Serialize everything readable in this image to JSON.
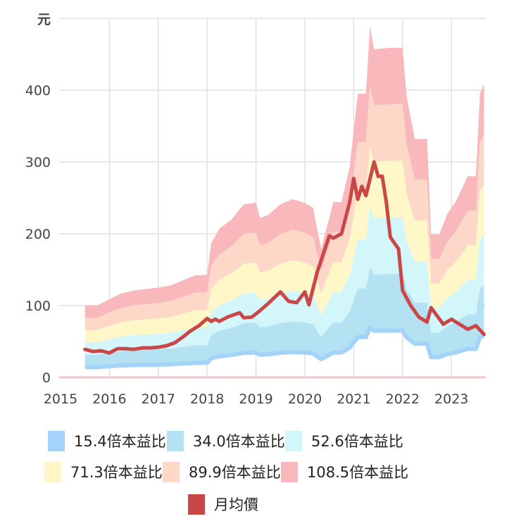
{
  "chart_data": {
    "type": "area",
    "y_unit_label": "元",
    "ylim": [
      0,
      500
    ],
    "xlim": [
      "2015-01",
      "2023-09"
    ],
    "y_ticks": [
      "0",
      "100",
      "200",
      "300",
      "400"
    ],
    "x_ticks": [
      "2015",
      "2016",
      "2017",
      "2018",
      "2019",
      "2020",
      "2021",
      "2022",
      "2023"
    ],
    "grid": true,
    "legend_position": "bottom",
    "bands": {
      "x": [
        "2015-07",
        "2015-10",
        "2016-01",
        "2016-04",
        "2016-07",
        "2016-10",
        "2017-01",
        "2017-04",
        "2017-07",
        "2017-10",
        "2018-01",
        "2018-02",
        "2018-04",
        "2018-07",
        "2018-10",
        "2019-01",
        "2019-02",
        "2019-04",
        "2019-07",
        "2019-10",
        "2020-01",
        "2020-03",
        "2020-05",
        "2020-08",
        "2020-10",
        "2020-12",
        "2021-02",
        "2021-04",
        "2021-05",
        "2021-06",
        "2021-10",
        "2022-01",
        "2022-02",
        "2022-04",
        "2022-07",
        "2022-08",
        "2022-10",
        "2022-12",
        "2023-02",
        "2023-05",
        "2023-07",
        "2023-08",
        "2023-09"
      ],
      "series": [
        {
          "name": "15.4倍本益比",
          "color": "#a3d3f8",
          "values": [
            14.2,
            14.2,
            15.5,
            16.6,
            17.2,
            17.5,
            17.7,
            18.2,
            19.2,
            20.1,
            20.3,
            26.5,
            29.4,
            31.2,
            34.2,
            34.5,
            31.5,
            32.1,
            34.2,
            35.2,
            34.5,
            33.5,
            25.4,
            34.6,
            34.6,
            41.6,
            56.1,
            56.1,
            69.4,
            64.9,
            65.1,
            65.1,
            55.5,
            47.1,
            47.1,
            28.2,
            28.2,
            32.4,
            34.6,
            39.7,
            39.7,
            56.1,
            57.9
          ]
        },
        {
          "name": "34.0倍本益比",
          "color": "#b5e2f3",
          "values": [
            31.3,
            31.3,
            34.2,
            36.7,
            37.9,
            38.5,
            39.2,
            40.1,
            42.3,
            44.5,
            44.8,
            58.6,
            64.9,
            68.9,
            75.5,
            76.2,
            69.6,
            70.8,
            75.5,
            77.7,
            76.2,
            74.0,
            56.1,
            76.5,
            76.5,
            91.8,
            123.8,
            123.8,
            153.3,
            143.2,
            143.9,
            143.9,
            122.5,
            104.0,
            104.0,
            62.4,
            62.4,
            71.5,
            76.5,
            87.8,
            87.8,
            123.8,
            127.9
          ]
        },
        {
          "name": "52.6倍本益比",
          "color": "#d3f6fa",
          "values": [
            48.5,
            48.5,
            52.8,
            56.7,
            58.7,
            59.6,
            60.6,
            62.1,
            65.4,
            68.8,
            69.3,
            90.7,
            100.4,
            106.7,
            116.8,
            117.8,
            107.6,
            109.6,
            116.8,
            120.2,
            117.8,
            114.4,
            86.8,
            118.3,
            118.3,
            142.0,
            191.5,
            191.5,
            237.1,
            221.6,
            222.5,
            222.5,
            189.6,
            161.0,
            161.0,
            96.5,
            96.5,
            110.5,
            118.3,
            135.7,
            135.7,
            191.5,
            197.8
          ]
        },
        {
          "name": "71.3倍本益比",
          "color": "#fff7c8",
          "values": [
            65.7,
            65.7,
            71.6,
            76.9,
            79.5,
            80.8,
            82.1,
            84.1,
            88.7,
            93.3,
            94.0,
            122.9,
            136.0,
            144.6,
            158.4,
            159.7,
            145.9,
            148.5,
            158.4,
            163.0,
            159.7,
            155.1,
            117.6,
            160.3,
            160.3,
            192.5,
            259.6,
            259.6,
            321.3,
            300.3,
            301.6,
            301.6,
            256.9,
            218.2,
            218.2,
            130.8,
            130.8,
            149.8,
            160.3,
            184.0,
            184.0,
            259.6,
            268.1
          ]
        },
        {
          "name": "89.9倍本益比",
          "color": "#fdd7c8",
          "values": [
            82.9,
            82.9,
            90.3,
            96.9,
            100.3,
            101.9,
            103.6,
            106.1,
            111.9,
            117.7,
            118.5,
            154.9,
            171.5,
            182.3,
            199.7,
            201.3,
            183.9,
            187.3,
            199.7,
            205.5,
            201.3,
            195.5,
            148.3,
            202.2,
            202.2,
            242.8,
            327.3,
            327.3,
            405.2,
            378.7,
            380.3,
            380.3,
            324.0,
            275.1,
            275.1,
            164.9,
            164.9,
            188.9,
            202.2,
            232.0,
            232.0,
            327.3,
            338.1
          ]
        },
        {
          "name": "108.5倍本益比",
          "color": "#f8b8bc",
          "values": [
            100,
            100,
            109,
            117,
            121,
            123,
            125,
            128,
            135,
            142,
            143,
            187,
            207,
            220,
            241,
            243,
            222,
            226,
            241,
            248,
            243,
            236,
            179,
            244,
            244,
            293,
            395,
            395,
            489,
            457,
            459,
            459,
            391,
            332,
            332,
            199,
            199,
            228,
            244,
            280,
            280,
            395,
            408
          ]
        }
      ]
    },
    "price": {
      "name": "月均價",
      "color": "#c94747",
      "x": [
        "2015-07",
        "2015-09",
        "2015-11",
        "2016-01",
        "2016-03",
        "2016-05",
        "2016-07",
        "2016-09",
        "2016-11",
        "2017-01",
        "2017-03",
        "2017-05",
        "2017-07",
        "2017-09",
        "2017-11",
        "2018-01",
        "2018-02",
        "2018-03",
        "2018-04",
        "2018-06",
        "2018-08",
        "2018-09",
        "2018-10",
        "2018-12",
        "2019-02",
        "2019-04",
        "2019-07",
        "2019-09",
        "2019-11",
        "2020-01",
        "2020-02",
        "2020-04",
        "2020-07",
        "2020-08",
        "2020-10",
        "2020-12",
        "2021-01",
        "2021-02",
        "2021-03",
        "2021-04",
        "2021-06",
        "2021-07",
        "2021-08",
        "2021-09",
        "2021-10",
        "2021-12",
        "2022-01",
        "2022-03",
        "2022-05",
        "2022-07",
        "2022-08",
        "2022-11",
        "2023-01",
        "2023-03",
        "2023-05",
        "2023-07",
        "2023-09"
      ],
      "values": [
        39,
        36,
        37,
        34,
        40,
        40,
        39,
        41,
        41,
        42,
        44,
        48,
        56,
        65,
        72,
        82,
        78,
        81,
        78,
        84,
        88,
        90,
        83,
        84,
        93,
        103,
        119,
        106,
        104,
        119,
        101,
        146,
        197,
        194,
        200,
        244,
        277,
        248,
        266,
        253,
        300,
        280,
        280,
        244,
        195,
        179,
        121,
        100,
        84,
        77,
        97,
        74,
        81,
        74,
        67,
        72,
        60
      ]
    }
  }
}
